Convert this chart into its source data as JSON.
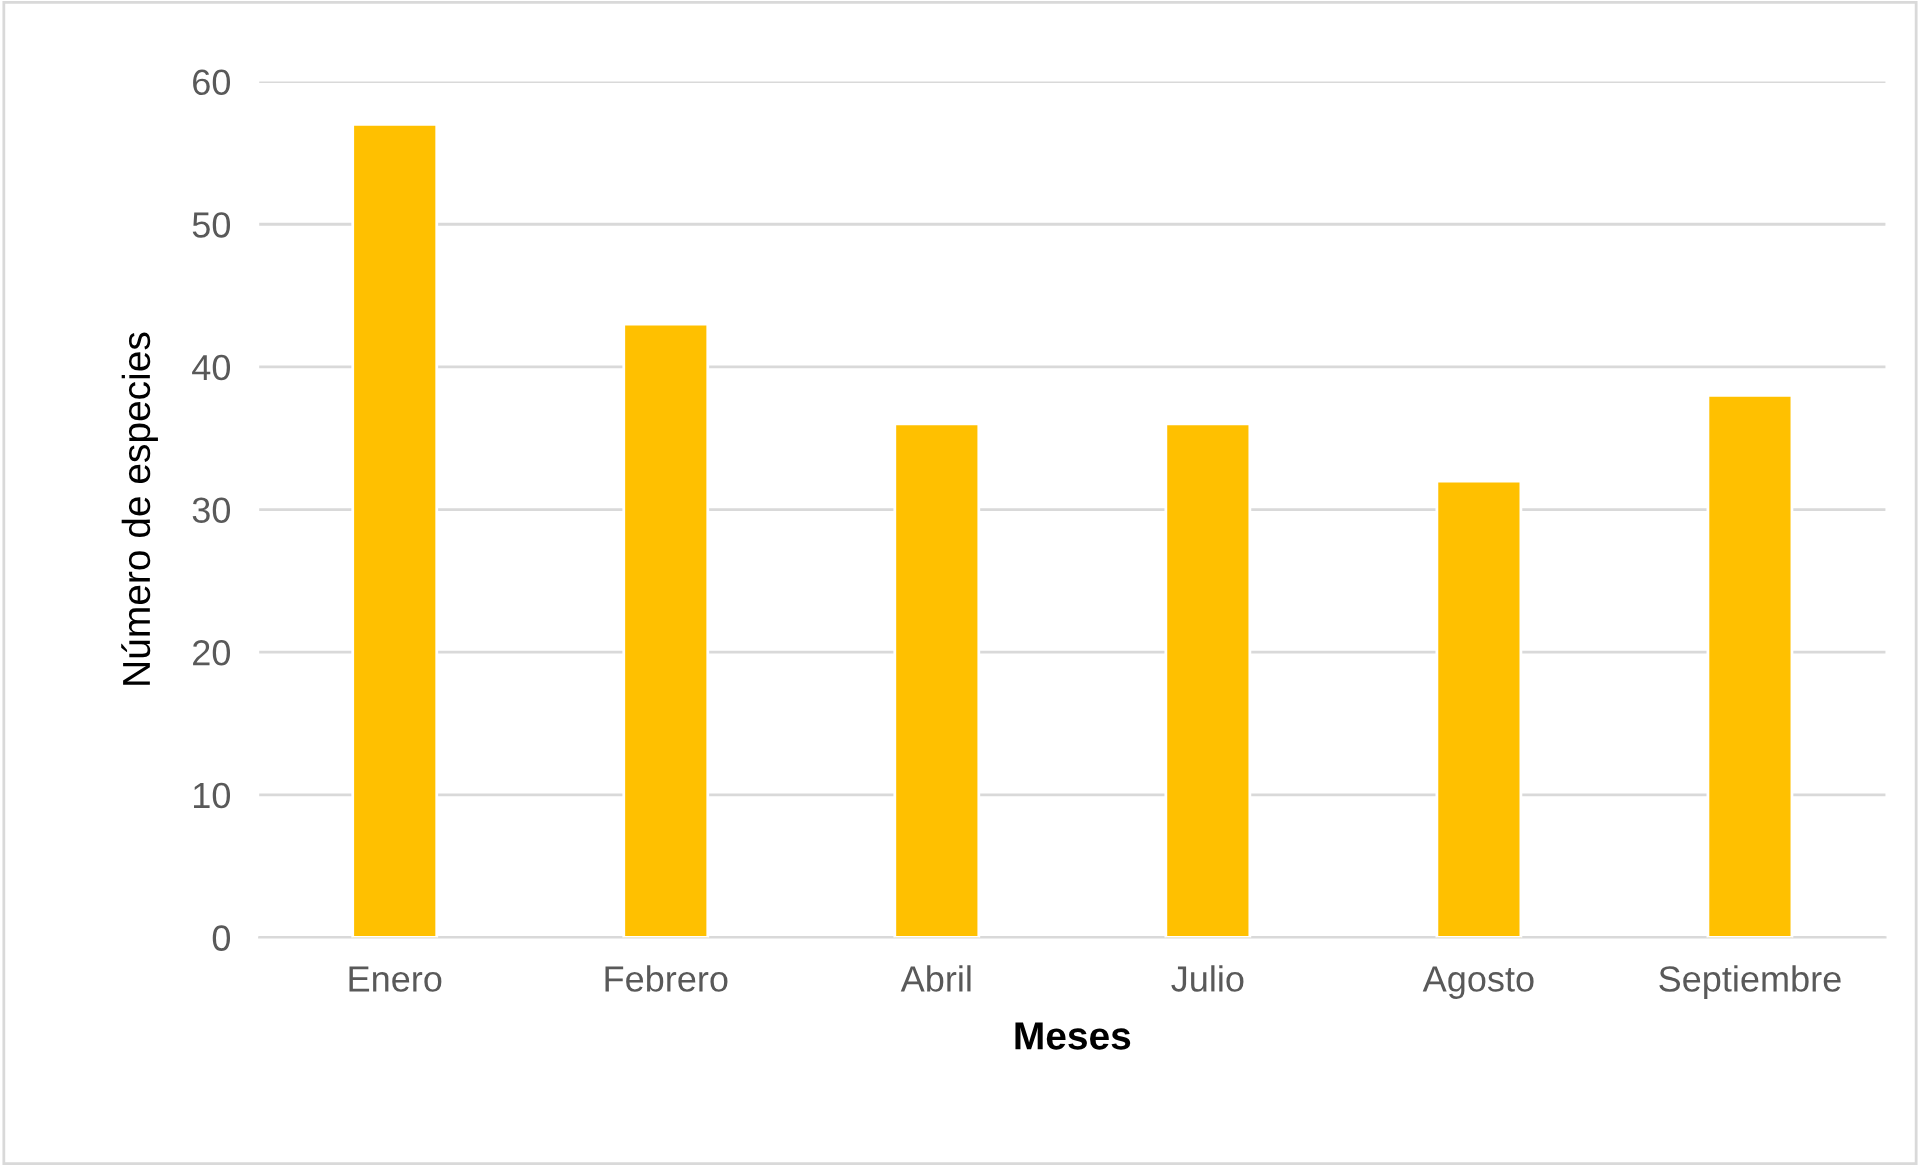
{
  "chart_data": {
    "type": "bar",
    "xlabel": "Meses",
    "ylabel": "Número de especies",
    "categories": [
      "Enero",
      "Febrero",
      "Abril",
      "Julio",
      "Agosto",
      "Septiembre"
    ],
    "values": [
      57,
      43,
      36,
      36,
      32,
      38
    ],
    "color": "#ffc000",
    "ylim": [
      0,
      60
    ],
    "yticks": [
      0,
      10,
      20,
      30,
      40,
      50,
      60
    ],
    "grid": "y"
  }
}
